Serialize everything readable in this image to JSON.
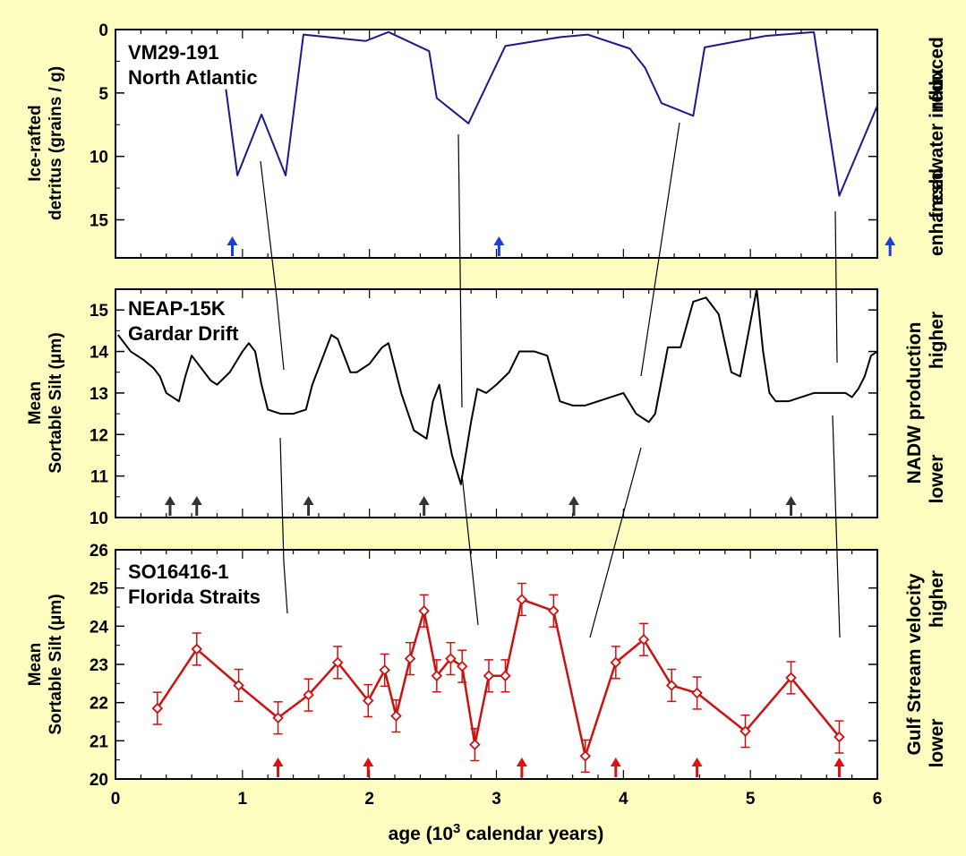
{
  "colors": {
    "background": "#fdfdc0",
    "panel_background": "#ffffff",
    "vm29_line": "#1a1a8c",
    "vm29_arrow": "#1a3fd6",
    "neap_line": "#000000",
    "neap_arrow": "#333333",
    "so_line": "#cc1111",
    "so_arrow": "#e01010"
  },
  "xaxis": {
    "label_prefix": "age (10",
    "label_sup": "3",
    "label_suffix": " calendar years)",
    "ticks": [
      "0",
      "1",
      "2",
      "3",
      "4",
      "5",
      "6"
    ]
  },
  "chart_data": [
    {
      "type": "line",
      "id": "vm29",
      "title_line1": "VM29-191",
      "title_line2": "North Atlantic",
      "ylabel_line1": "Ice-rafted",
      "ylabel_line2": "detritus (grains / g)",
      "right_label": "freshwater influx",
      "right_label_high": "reduced",
      "right_label_low": "enhanced",
      "y_inverted": true,
      "xlim": [
        0,
        6
      ],
      "ylim": [
        0,
        18
      ],
      "yticks": [
        "0",
        "5",
        "10",
        "15"
      ],
      "series": [
        {
          "x": [
            0.87,
            0.96,
            1.15,
            1.34,
            1.48,
            1.97,
            2.15,
            2.47,
            2.53,
            2.78,
            3.07,
            3.5,
            3.72,
            4.05,
            4.17,
            4.3,
            4.55,
            4.64,
            5.12,
            5.5,
            5.7,
            6.0
          ],
          "y": [
            4.7,
            11.5,
            6.7,
            11.5,
            0.4,
            0.9,
            0.2,
            1.7,
            5.4,
            7.4,
            1.3,
            0.6,
            0.4,
            1.5,
            3.0,
            5.8,
            6.8,
            1.4,
            0.5,
            0.2,
            13.1,
            6.0
          ]
        }
      ],
      "markers": [
        0.92,
        3.02,
        6.1
      ]
    },
    {
      "type": "line",
      "id": "neap",
      "title_line1": "NEAP-15K",
      "title_line2": "Gardar Drift",
      "ylabel_line1": "Mean",
      "ylabel_line2": "Sortable Silt (μm)",
      "right_label": "NADW production",
      "right_label_high": "higher",
      "right_label_low": "lower",
      "xlim": [
        0,
        6
      ],
      "ylim": [
        10,
        15.5
      ],
      "yticks": [
        "10",
        "11",
        "12",
        "13",
        "14",
        "15"
      ],
      "series": [
        {
          "x": [
            0.02,
            0.12,
            0.22,
            0.3,
            0.35,
            0.4,
            0.45,
            0.5,
            0.55,
            0.6,
            0.7,
            0.75,
            0.8,
            0.9,
            1.0,
            1.05,
            1.1,
            1.15,
            1.2,
            1.25,
            1.3,
            1.4,
            1.5,
            1.55,
            1.6,
            1.7,
            1.75,
            1.85,
            1.9,
            2.0,
            2.1,
            2.15,
            2.25,
            2.35,
            2.4,
            2.45,
            2.5,
            2.55,
            2.6,
            2.65,
            2.72,
            2.8,
            2.85,
            2.92,
            3.0,
            3.1,
            3.18,
            3.3,
            3.4,
            3.5,
            3.6,
            3.7,
            3.8,
            3.9,
            4.0,
            4.1,
            4.2,
            4.25,
            4.35,
            4.45,
            4.55,
            4.65,
            4.75,
            4.85,
            4.92,
            5.0,
            5.05,
            5.1,
            5.15,
            5.2,
            5.3,
            5.4,
            5.5,
            5.6,
            5.75,
            5.8,
            5.85,
            5.9,
            5.95,
            6.0
          ],
          "y": [
            14.4,
            14.0,
            13.8,
            13.6,
            13.4,
            13.0,
            12.9,
            12.8,
            13.4,
            13.9,
            13.5,
            13.3,
            13.2,
            13.5,
            14.0,
            14.2,
            14.0,
            13.2,
            12.6,
            12.55,
            12.5,
            12.5,
            12.6,
            13.2,
            13.6,
            14.4,
            14.3,
            13.5,
            13.5,
            13.7,
            14.1,
            14.2,
            13.0,
            12.1,
            12.0,
            11.9,
            12.8,
            13.2,
            12.3,
            11.5,
            10.8,
            12.3,
            13.1,
            13.0,
            13.2,
            13.5,
            14.0,
            14.0,
            13.9,
            12.8,
            12.7,
            12.7,
            12.8,
            12.9,
            13.0,
            12.5,
            12.3,
            12.5,
            14.1,
            14.1,
            15.2,
            15.3,
            14.9,
            13.5,
            13.4,
            14.7,
            15.5,
            14.0,
            13.0,
            12.8,
            12.8,
            12.9,
            13.0,
            13.0,
            13.0,
            12.9,
            13.1,
            13.4,
            13.9,
            14.0
          ]
        }
      ],
      "markers": [
        0.43,
        0.64,
        1.52,
        2.43,
        3.61,
        5.32
      ]
    },
    {
      "type": "line",
      "id": "so16416",
      "title_line1": "SO16416-1",
      "title_line2": "Florida Straits",
      "ylabel_line1": "Mean",
      "ylabel_line2": "Sortable Silt (μm)",
      "right_label": "Gulf Stream velocity",
      "right_label_high": "higher",
      "right_label_low": "lower",
      "xlim": [
        0,
        6
      ],
      "ylim": [
        20,
        26
      ],
      "yticks": [
        "20",
        "21",
        "22",
        "23",
        "24",
        "25",
        "26"
      ],
      "error_bar": 0.42,
      "series": [
        {
          "x": [
            0.33,
            0.64,
            0.97,
            1.28,
            1.52,
            1.75,
            1.99,
            2.12,
            2.21,
            2.32,
            2.43,
            2.53,
            2.64,
            2.73,
            2.83,
            2.94,
            3.07,
            3.2,
            3.45,
            3.7,
            3.94,
            4.16,
            4.38,
            4.58,
            4.96,
            5.32,
            5.7
          ],
          "y": [
            21.85,
            23.4,
            22.45,
            21.6,
            22.2,
            23.05,
            22.05,
            22.85,
            21.65,
            23.15,
            24.4,
            22.7,
            23.15,
            22.95,
            20.9,
            22.7,
            22.7,
            24.7,
            24.4,
            20.6,
            23.05,
            23.65,
            22.45,
            22.25,
            21.25,
            22.65,
            21.1
          ]
        }
      ],
      "markers": [
        1.28,
        1.99,
        3.2,
        3.94,
        4.58,
        5.7
      ]
    }
  ]
}
